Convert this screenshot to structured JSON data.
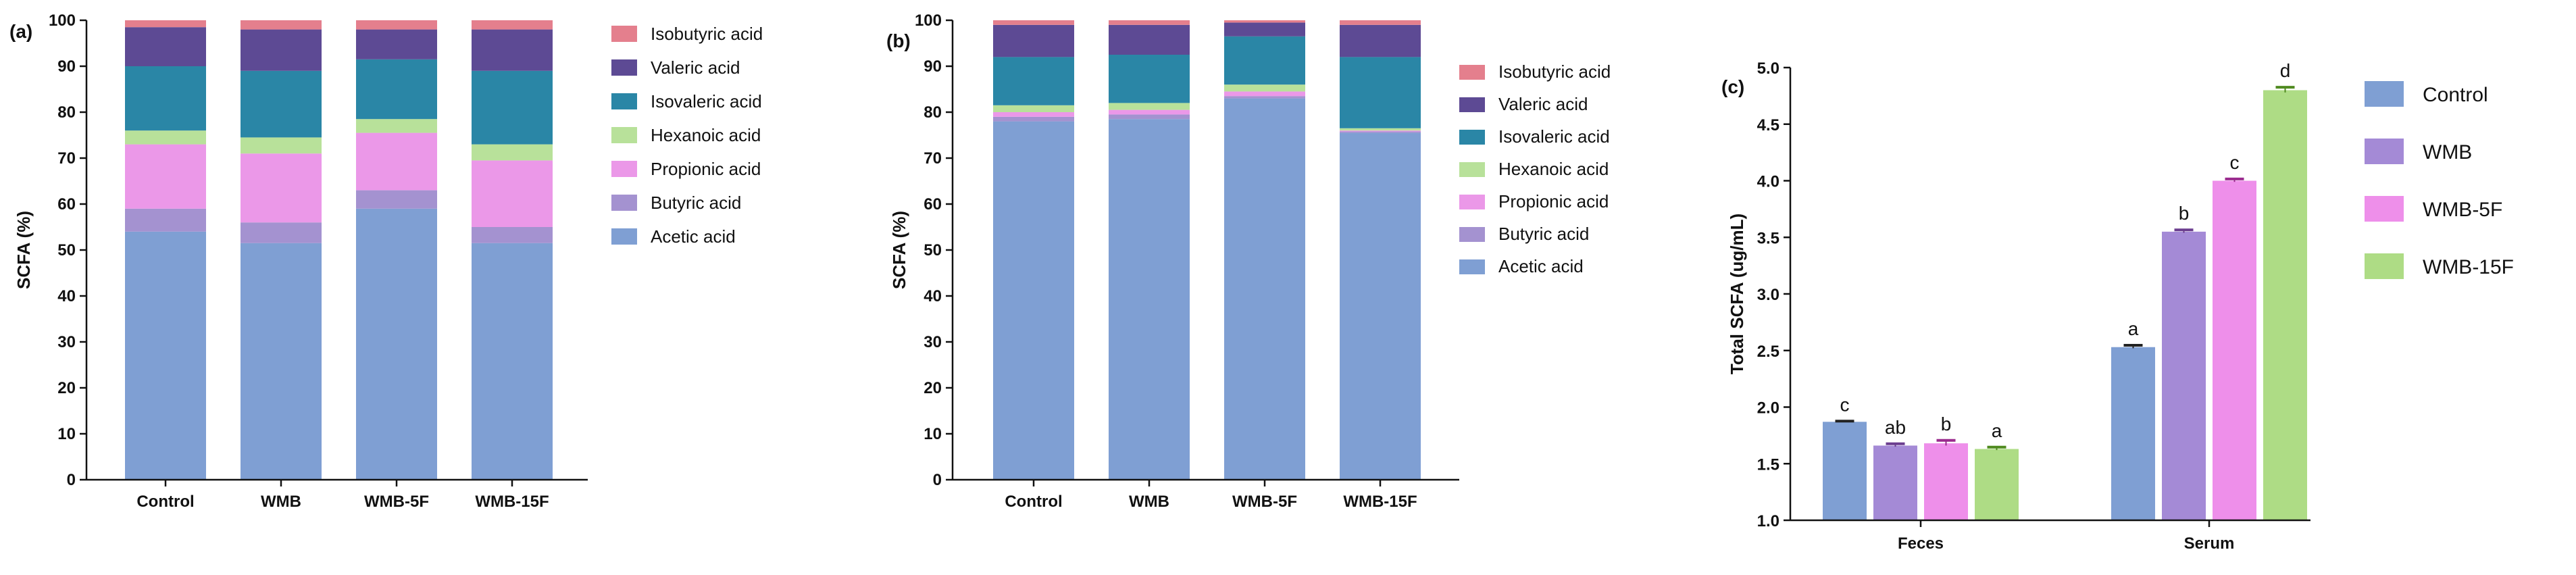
{
  "figure": {
    "colors": {
      "acetic": "#7f9fd3",
      "butyric": "#a492d0",
      "propionic": "#eb98e8",
      "hexanoic": "#b8e19a",
      "isovaleric": "#2a86a6",
      "valeric": "#5d4a94",
      "isobutyric": "#e47f8d",
      "control": "#7f9fd3",
      "wmb": "#a48ad6",
      "wmb5f": "#ee8fea",
      "wmb15f": "#aedc85",
      "err_wmb": "#6b3d8f",
      "err_wmb5f": "#9a2a8e",
      "err_wmb15f": "#4f8a1f",
      "err_default": "#222222"
    }
  },
  "chart_data": [
    {
      "panel": "(a)",
      "type": "bar",
      "stacked": true,
      "title": "",
      "xlabel": "",
      "ylabel": "SCFA (%)",
      "ylim": [
        0,
        100
      ],
      "yticks": [
        0,
        10,
        20,
        30,
        40,
        50,
        60,
        70,
        80,
        90,
        100
      ],
      "categories": [
        "Control",
        "WMB",
        "WMB-5F",
        "WMB-15F"
      ],
      "series": [
        {
          "name": "Acetic acid",
          "key": "acetic",
          "values": [
            54,
            51.5,
            59,
            51.5
          ]
        },
        {
          "name": "Butyric acid",
          "key": "butyric",
          "values": [
            5,
            4.5,
            4,
            3.5
          ]
        },
        {
          "name": "Propionic acid",
          "key": "propionic",
          "values": [
            14,
            15,
            12.5,
            14.5
          ]
        },
        {
          "name": "Hexanoic acid",
          "key": "hexanoic",
          "values": [
            3,
            3.5,
            3,
            3.5
          ]
        },
        {
          "name": "Isovaleric acid",
          "key": "isovaleric",
          "values": [
            14,
            14.5,
            13,
            16
          ]
        },
        {
          "name": "Valeric acid",
          "key": "valeric",
          "values": [
            8.5,
            9,
            6.5,
            9
          ]
        },
        {
          "name": "Isobutyric acid",
          "key": "isobutyric",
          "values": [
            1.5,
            2,
            2,
            2
          ]
        }
      ],
      "legend_order": [
        "Isobutyric acid",
        "Valeric acid",
        "Isovaleric acid",
        "Hexanoic acid",
        "Propionic acid",
        "Butyric acid",
        "Acetic acid"
      ],
      "legend_position": "top-right"
    },
    {
      "panel": "(b)",
      "type": "bar",
      "stacked": true,
      "title": "",
      "xlabel": "",
      "ylabel": "SCFA (%)",
      "ylim": [
        0,
        100
      ],
      "yticks": [
        0,
        10,
        20,
        30,
        40,
        50,
        60,
        70,
        80,
        90,
        100
      ],
      "categories": [
        "Control",
        "WMB",
        "WMB-5F",
        "WMB-15F"
      ],
      "series": [
        {
          "name": "Acetic acid",
          "key": "acetic",
          "values": [
            78,
            78.5,
            83,
            75.5
          ]
        },
        {
          "name": "Butyric acid",
          "key": "butyric",
          "values": [
            1,
            1,
            0.5,
            0.3
          ]
        },
        {
          "name": "Propionic acid",
          "key": "propionic",
          "values": [
            1,
            1,
            1,
            0.2
          ]
        },
        {
          "name": "Hexanoic acid",
          "key": "hexanoic",
          "values": [
            1.5,
            1.5,
            1.5,
            0.5
          ]
        },
        {
          "name": "Isovaleric acid",
          "key": "isovaleric",
          "values": [
            10.5,
            10.5,
            10.5,
            15.5
          ]
        },
        {
          "name": "Valeric acid",
          "key": "valeric",
          "values": [
            7,
            6.5,
            3,
            7
          ]
        },
        {
          "name": "Isobutyric acid",
          "key": "isobutyric",
          "values": [
            1,
            1,
            0.5,
            1
          ]
        }
      ],
      "legend_order": [
        "Isobutyric acid",
        "Valeric acid",
        "Isovaleric acid",
        "Hexanoic acid",
        "Propionic acid",
        "Butyric acid",
        "Acetic acid"
      ],
      "legend_position": "right"
    },
    {
      "panel": "(c)",
      "type": "bar",
      "stacked": false,
      "title": "",
      "xlabel": "",
      "ylabel": "Total SCFA (ug/mL)",
      "ylim": [
        1.0,
        5.0
      ],
      "yticks": [
        "1.0",
        "1.5",
        "2.0",
        "2.5",
        "3.0",
        "3.5",
        "4.0",
        "4.5",
        "5.0"
      ],
      "categories": [
        "Feces",
        "Serum"
      ],
      "series": [
        {
          "name": "Control",
          "key": "control",
          "errkey": "err_default",
          "values": [
            1.87,
            2.53
          ],
          "errors": [
            0.0,
            0.01
          ],
          "labels": [
            "c",
            "a"
          ]
        },
        {
          "name": "WMB",
          "key": "wmb",
          "errkey": "err_wmb",
          "values": [
            1.66,
            3.55
          ],
          "errors": [
            0.01,
            0.01
          ],
          "labels": [
            "ab",
            "b"
          ]
        },
        {
          "name": "WMB-5F",
          "key": "wmb5f",
          "errkey": "err_wmb5f",
          "values": [
            1.68,
            4.0
          ],
          "errors": [
            0.02,
            0.01
          ],
          "labels": [
            "b",
            "c"
          ]
        },
        {
          "name": "WMB-15F",
          "key": "wmb15f",
          "errkey": "err_wmb15f",
          "values": [
            1.63,
            4.8
          ],
          "errors": [
            0.01,
            0.02
          ],
          "labels": [
            "a",
            "d"
          ]
        }
      ],
      "legend_position": "right"
    }
  ]
}
